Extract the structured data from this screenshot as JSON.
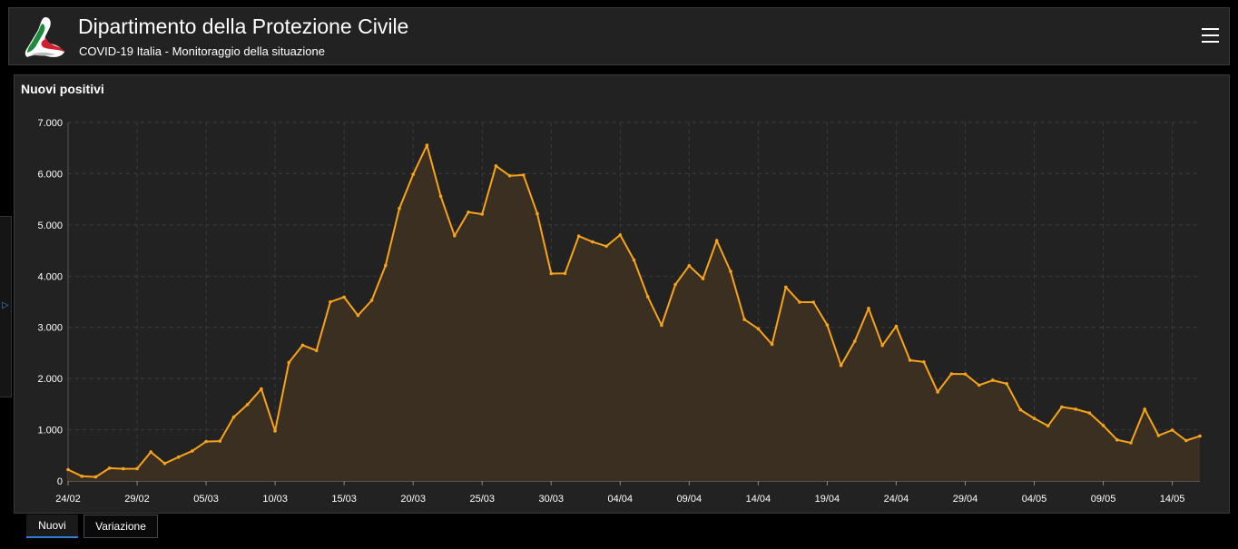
{
  "header": {
    "title": "Dipartimento della Protezione Civile",
    "subtitle": "COVID-19 Italia - Monitoraggio della situazione",
    "logo_icon": "protezione-civile-logo",
    "menu_icon": "hamburger-menu-icon"
  },
  "panel": {
    "title": "Nuovi positivi"
  },
  "tabs": {
    "active": "Nuovi",
    "inactive": "Variazione"
  },
  "colors": {
    "line": "#f7a41c",
    "fill": "#3a2f21",
    "accent": "#2d7fd6",
    "panel_bg": "#222222"
  },
  "chart_data": {
    "type": "area",
    "title": "Nuovi positivi",
    "xlabel": "",
    "ylabel": "",
    "ylim": [
      0,
      7000
    ],
    "yticks": [
      "0",
      "1.000",
      "2.000",
      "3.000",
      "4.000",
      "5.000",
      "6.000",
      "7.000"
    ],
    "xtick_labels": [
      "24/02",
      "29/02",
      "05/03",
      "10/03",
      "15/03",
      "20/03",
      "25/03",
      "30/03",
      "04/04",
      "09/04",
      "14/04",
      "19/04",
      "24/04",
      "29/04",
      "04/05",
      "09/05",
      "14/05"
    ],
    "grid": true,
    "x": [
      "24/02",
      "25/02",
      "26/02",
      "27/02",
      "28/02",
      "29/02",
      "01/03",
      "02/03",
      "03/03",
      "04/03",
      "05/03",
      "06/03",
      "07/03",
      "08/03",
      "09/03",
      "10/03",
      "11/03",
      "12/03",
      "13/03",
      "14/03",
      "15/03",
      "16/03",
      "17/03",
      "18/03",
      "19/03",
      "20/03",
      "21/03",
      "22/03",
      "23/03",
      "24/03",
      "25/03",
      "26/03",
      "27/03",
      "28/03",
      "29/03",
      "30/03",
      "31/03",
      "01/04",
      "02/04",
      "03/04",
      "04/04",
      "05/04",
      "06/04",
      "07/04",
      "08/04",
      "09/04",
      "10/04",
      "11/04",
      "12/04",
      "13/04",
      "14/04",
      "15/04",
      "16/04",
      "17/04",
      "18/04",
      "19/04",
      "20/04",
      "21/04",
      "22/04",
      "23/04",
      "24/04",
      "25/04",
      "26/04",
      "27/04",
      "28/04",
      "29/04",
      "30/04",
      "01/05",
      "02/05",
      "03/05",
      "04/05",
      "05/05",
      "06/05",
      "07/05",
      "08/05",
      "09/05",
      "10/05",
      "11/05",
      "12/05",
      "13/05",
      "14/05",
      "15/05",
      "16/05"
    ],
    "values": [
      221,
      93,
      78,
      250,
      238,
      240,
      566,
      342,
      466,
      587,
      769,
      778,
      1247,
      1492,
      1797,
      977,
      2313,
      2651,
      2547,
      3497,
      3590,
      3233,
      3526,
      4207,
      5322,
      5986,
      6557,
      5560,
      4789,
      5249,
      5210,
      6153,
      5959,
      5974,
      5217,
      4050,
      4053,
      4782,
      4668,
      4585,
      4805,
      4316,
      3599,
      3039,
      3836,
      4204,
      3951,
      4694,
      4092,
      3153,
      2972,
      2667,
      3786,
      3493,
      3491,
      3047,
      2256,
      2729,
      3370,
      2646,
      3021,
      2357,
      2324,
      1739,
      2091,
      2086,
      1872,
      1965,
      1900,
      1389,
      1221,
      1075,
      1444,
      1401,
      1327,
      1083,
      802,
      744,
      1402,
      888,
      992,
      789,
      875
    ]
  }
}
